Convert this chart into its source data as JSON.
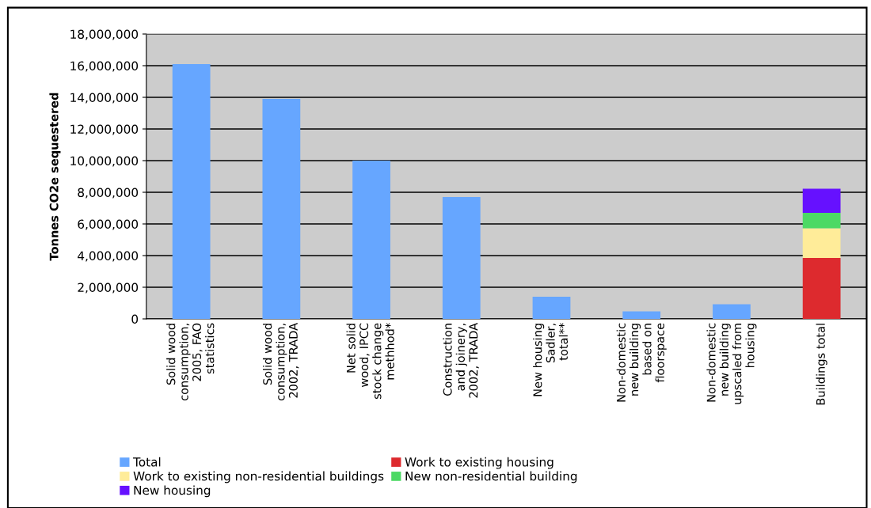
{
  "chart_data": {
    "type": "bar",
    "stacked": true,
    "ylabel": "Tonnes CO2e sequestered",
    "categories": [
      "Solid wood\nconsumption,\n2005, FAO\nstatistics",
      "Solid wood\nconsumption,\n2002, TRADA",
      "Net solid\nwood, IPCC\nstock change\nmethhod*",
      "Construction\nand joinery,\n2002, TRADA",
      "New housing\nSadler,\ntotal**",
      "Non-domestic\nnew building\nbased on\nfloorspace",
      "Non-domestic\nnew building\nupscaled from\nhousing",
      "Buildings total"
    ],
    "series": [
      {
        "name": "Total",
        "color": "#66a6ff",
        "values": [
          16100000,
          13900000,
          10000000,
          7700000,
          1400000,
          470000,
          930000,
          null
        ]
      },
      {
        "name": "Work to existing housing",
        "color": "#dd2a2e",
        "values": [
          null,
          null,
          null,
          null,
          null,
          null,
          null,
          3850000
        ]
      },
      {
        "name": "Work to existing non-residential buildings",
        "color": "#ffec99",
        "values": [
          null,
          null,
          null,
          null,
          null,
          null,
          null,
          1870000
        ]
      },
      {
        "name": "New non-residential building",
        "color": "#4cd964",
        "values": [
          null,
          null,
          null,
          null,
          null,
          null,
          null,
          980000
        ]
      },
      {
        "name": "New housing",
        "color": "#6611ff",
        "values": [
          null,
          null,
          null,
          null,
          null,
          null,
          null,
          1530000
        ]
      }
    ],
    "ylim": [
      0,
      18000000
    ],
    "yticks": [
      {
        "value": 0,
        "label": "0"
      },
      {
        "value": 2000000,
        "label": "2,000,000"
      },
      {
        "value": 4000000,
        "label": "4,000,000"
      },
      {
        "value": 6000000,
        "label": "6,000,000"
      },
      {
        "value": 8000000,
        "label": "8,000,000"
      },
      {
        "value": 10000000,
        "label": "10,000,000"
      },
      {
        "value": 12000000,
        "label": "12,000,000"
      },
      {
        "value": 14000000,
        "label": "14,000,000"
      },
      {
        "value": 16000000,
        "label": "16,000,000"
      },
      {
        "value": 18000000,
        "label": "18,000,000"
      }
    ],
    "grid": "y",
    "legend": "bottom"
  }
}
